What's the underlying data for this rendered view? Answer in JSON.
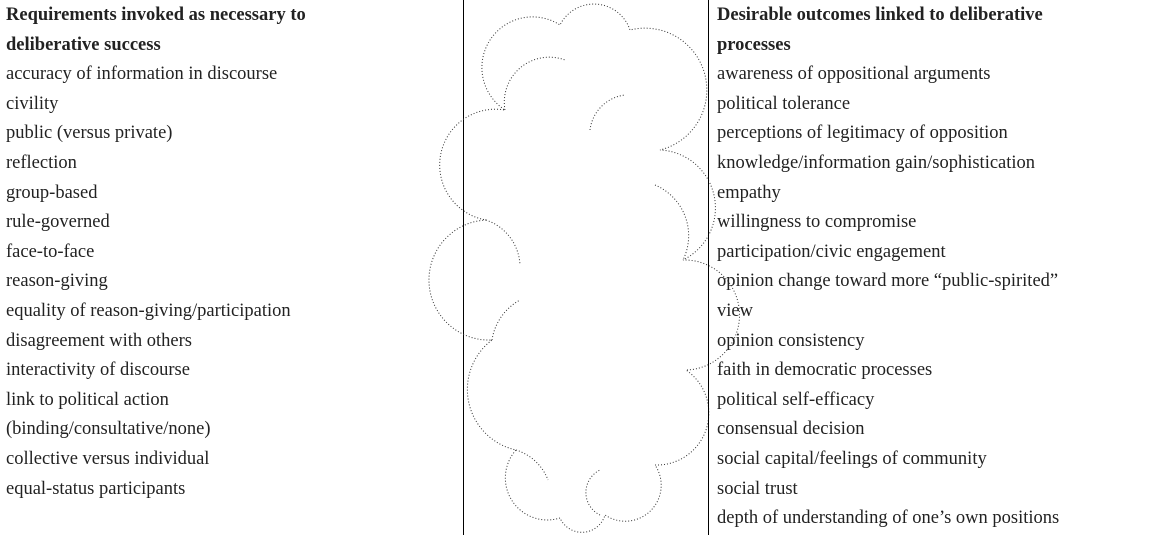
{
  "left": {
    "heading": [
      "Requirements invoked as necessary to",
      "deliberative success"
    ],
    "items": [
      "accuracy of information in discourse",
      "civility",
      "public (versus private)",
      "reflection",
      "group-based",
      "rule-governed",
      "face-to-face",
      "reason-giving",
      "equality of reason-giving/participation",
      "disagreement with others",
      "interactivity of discourse",
      "link to political action",
      "(binding/consultative/none)",
      "collective versus individual",
      "equal-status participants"
    ]
  },
  "right": {
    "heading": [
      "Desirable outcomes linked to deliberative",
      "processes"
    ],
    "items": [
      "awareness of oppositional arguments",
      "political tolerance",
      "perceptions of legitimacy of opposition",
      "knowledge/information gain/sophistication",
      "empathy",
      "willingness to compromise",
      "participation/civic engagement",
      "opinion change toward more “public-spirited”",
      "view",
      "opinion consistency",
      "faith in democratic processes",
      "political self-efficacy",
      "consensual decision",
      "social capital/feelings of community",
      "social trust",
      "depth of understanding of one’s own positions"
    ]
  }
}
